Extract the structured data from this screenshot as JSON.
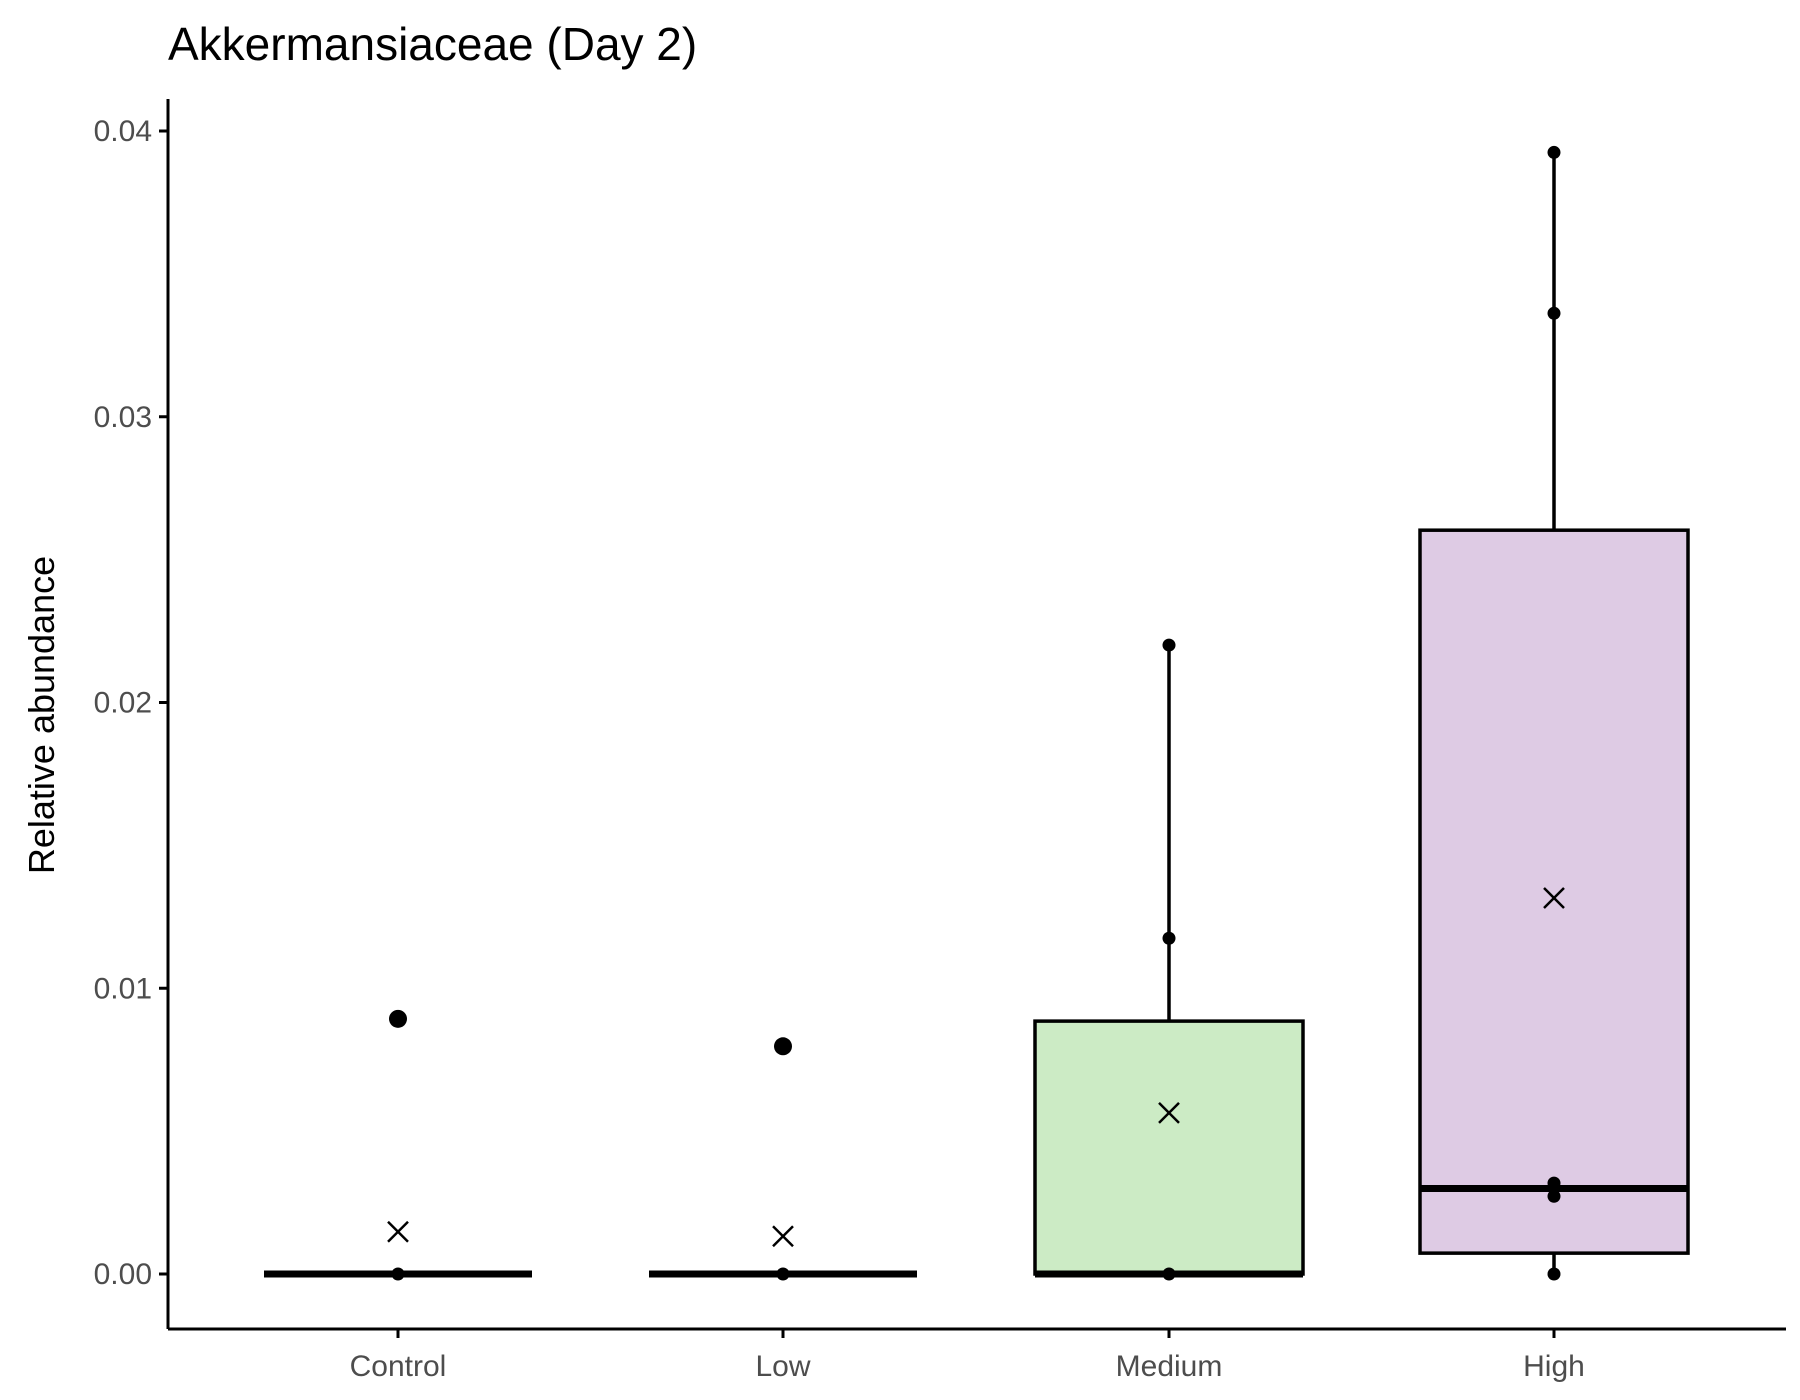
{
  "chart_data": {
    "type": "boxplot",
    "title": "Akkermansiaceae (Day 2)",
    "xlabel": "",
    "ylabel": "Relative abundance",
    "ylim": [
      -0.0019,
      0.0412
    ],
    "yticks": [
      0.0,
      0.01,
      0.02,
      0.03,
      0.04
    ],
    "ytick_labels": [
      "0.00",
      "0.01",
      "0.02",
      "0.03",
      "0.04"
    ],
    "categories": [
      "Control",
      "Low",
      "Medium",
      "High"
    ],
    "grid": false,
    "legend": "none",
    "colors": {
      "Control": "#ffffff",
      "Low": "#ffffff",
      "Medium": "#ccebc5",
      "High": "#decbe4"
    },
    "boxes": [
      {
        "category": "Control",
        "q1": 0.0,
        "median": 0.0,
        "q3": 0.0,
        "whisker_low": 0.0,
        "whisker_high": 0.0,
        "mean": 0.00148,
        "outliers": [
          0.00893
        ]
      },
      {
        "category": "Low",
        "q1": 0.0,
        "median": 0.0,
        "q3": 0.0,
        "whisker_low": 0.0,
        "whisker_high": 0.0,
        "mean": 0.00132,
        "outliers": [
          0.00797
        ]
      },
      {
        "category": "Medium",
        "q1": 0.0,
        "median": 0.0,
        "q3": 0.00885,
        "whisker_low": 0.0,
        "whisker_high": 0.02201,
        "mean": 0.00564,
        "outliers": []
      },
      {
        "category": "High",
        "q1": 0.00073,
        "median": 0.00299,
        "q3": 0.02603,
        "whisker_low": 0.0,
        "whisker_high": 0.03925,
        "mean": 0.01316,
        "outliers": []
      }
    ],
    "points": [
      {
        "category": "Control",
        "values": [
          0.0
        ]
      },
      {
        "category": "Low",
        "values": [
          0.0
        ]
      },
      {
        "category": "Medium",
        "values": [
          0.0,
          0.01175,
          0.02201
        ]
      },
      {
        "category": "High",
        "values": [
          0.0,
          0.00272,
          0.00318,
          0.03362,
          0.03925
        ]
      }
    ]
  }
}
